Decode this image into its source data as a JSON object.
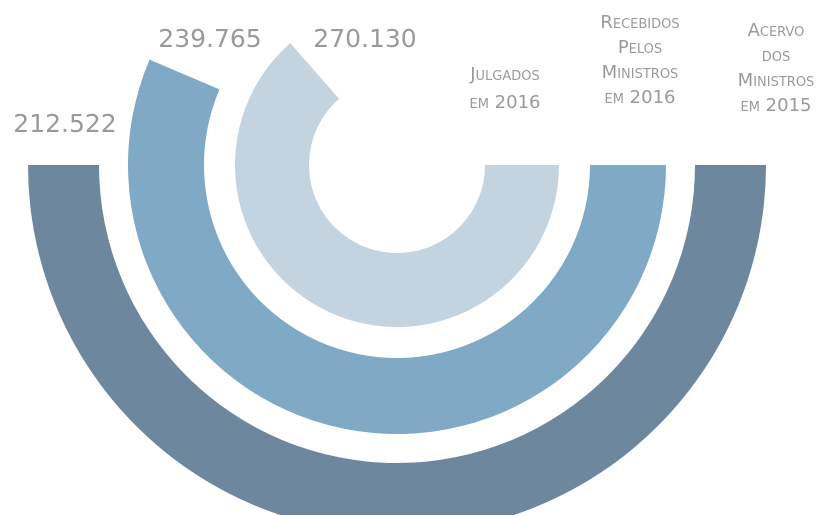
{
  "chart_data": {
    "type": "radial_bar",
    "series": [
      {
        "name": "Acervo dos Ministros em 2015",
        "color": "#6d879e",
        "values": [
          212522
        ],
        "value_labels": [
          "212.522"
        ]
      },
      {
        "name": "Recebidos Pelos Ministros em 2016",
        "color": "#7fa9c4",
        "values": [
          239765
        ],
        "value_labels": [
          "239.765"
        ]
      },
      {
        "name": "Julgados em 2016",
        "color": "#c3d3df",
        "values": [
          270130
        ],
        "value_labels": [
          "270.130"
        ]
      }
    ]
  }
}
